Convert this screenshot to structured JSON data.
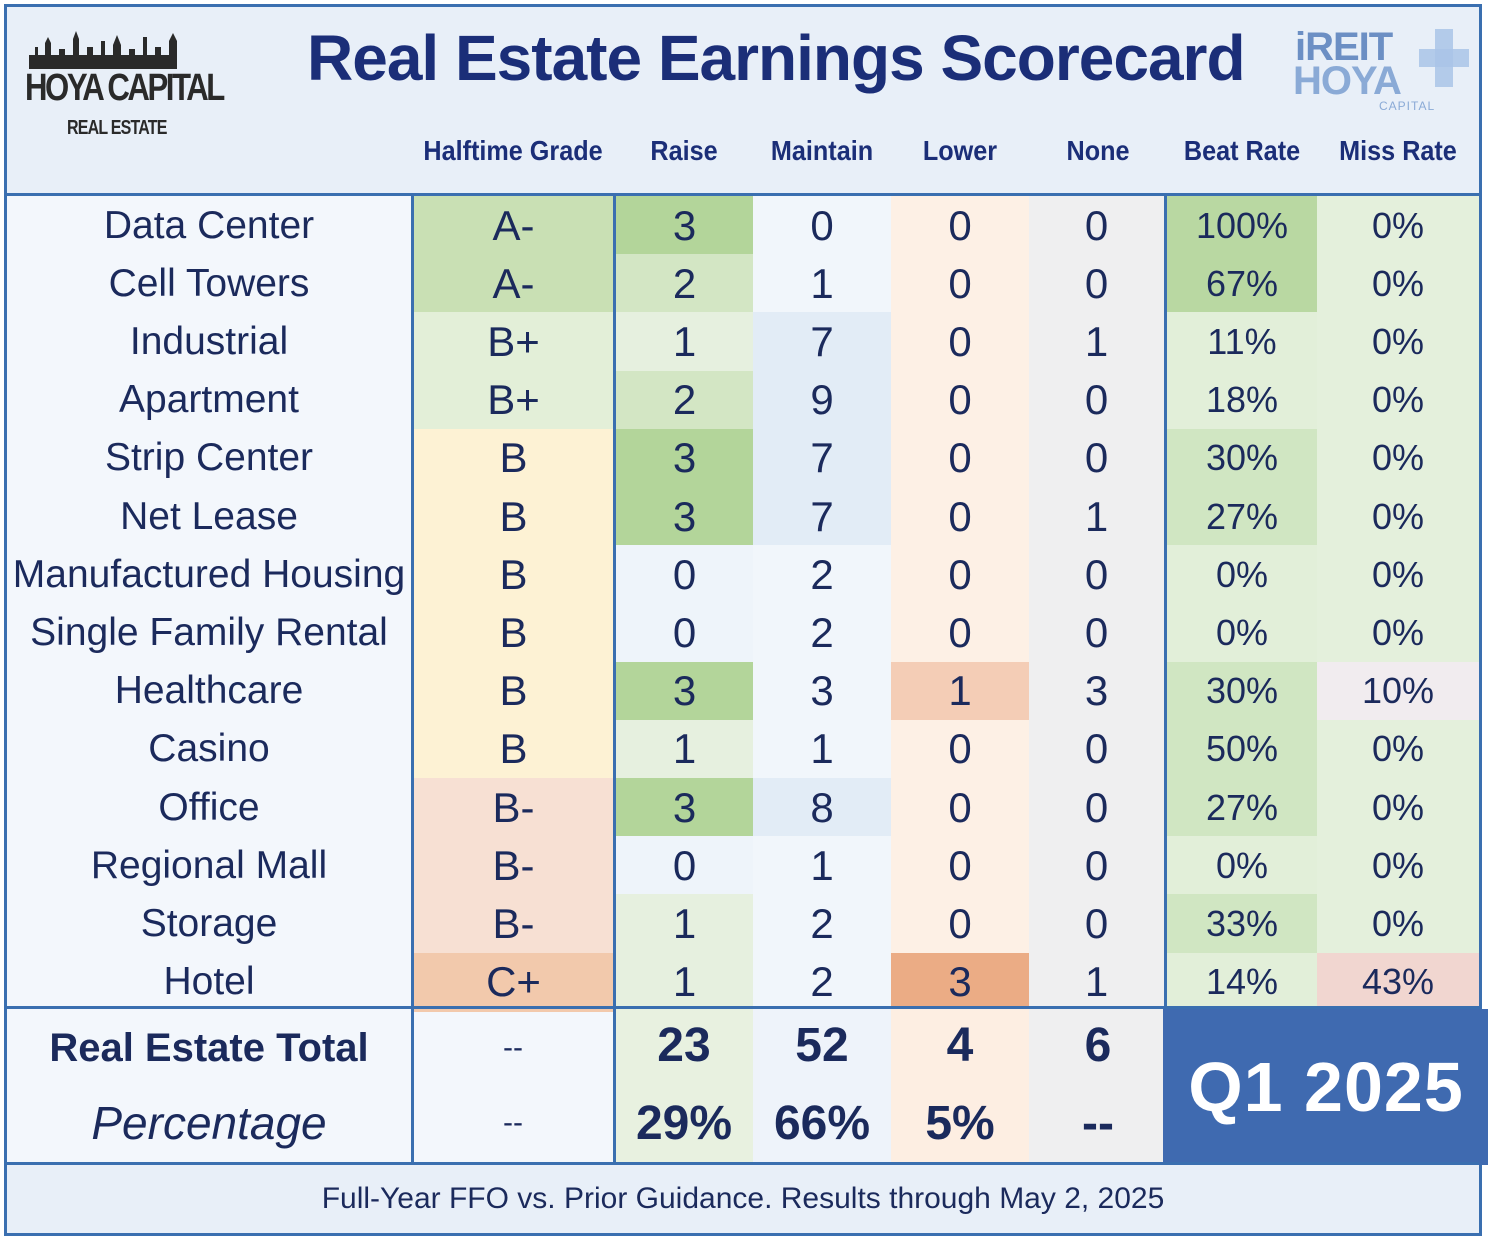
{
  "title": "Real Estate Earnings Scorecard",
  "logo_left": {
    "line1": "HOYA CAPITAL",
    "line2": "REAL ESTATE"
  },
  "logo_right": {
    "line1": "iREIT",
    "line2": "HOYA",
    "line3": "CAPITAL"
  },
  "columns": [
    "Halftime Grade",
    "Raise",
    "Maintain",
    "Lower",
    "None",
    "Beat Rate",
    "Miss Rate"
  ],
  "chart_data": {
    "type": "table",
    "title": "Real Estate Earnings Scorecard",
    "rows": [
      {
        "category": "Data Center",
        "grade": "A-",
        "raise": 3,
        "maintain": 0,
        "lower": 0,
        "none": 0,
        "beat": "100%",
        "miss": "0%"
      },
      {
        "category": "Cell Towers",
        "grade": "A-",
        "raise": 2,
        "maintain": 1,
        "lower": 0,
        "none": 0,
        "beat": "67%",
        "miss": "0%"
      },
      {
        "category": "Industrial",
        "grade": "B+",
        "raise": 1,
        "maintain": 7,
        "lower": 0,
        "none": 1,
        "beat": "11%",
        "miss": "0%"
      },
      {
        "category": "Apartment",
        "grade": "B+",
        "raise": 2,
        "maintain": 9,
        "lower": 0,
        "none": 0,
        "beat": "18%",
        "miss": "0%"
      },
      {
        "category": "Strip Center",
        "grade": "B",
        "raise": 3,
        "maintain": 7,
        "lower": 0,
        "none": 0,
        "beat": "30%",
        "miss": "0%"
      },
      {
        "category": "Net Lease",
        "grade": "B",
        "raise": 3,
        "maintain": 7,
        "lower": 0,
        "none": 1,
        "beat": "27%",
        "miss": "0%"
      },
      {
        "category": "Manufactured Housing",
        "grade": "B",
        "raise": 0,
        "maintain": 2,
        "lower": 0,
        "none": 0,
        "beat": "0%",
        "miss": "0%"
      },
      {
        "category": "Single Family Rental",
        "grade": "B",
        "raise": 0,
        "maintain": 2,
        "lower": 0,
        "none": 0,
        "beat": "0%",
        "miss": "0%"
      },
      {
        "category": "Healthcare",
        "grade": "B",
        "raise": 3,
        "maintain": 3,
        "lower": 1,
        "none": 3,
        "beat": "30%",
        "miss": "10%"
      },
      {
        "category": "Casino",
        "grade": "B",
        "raise": 1,
        "maintain": 1,
        "lower": 0,
        "none": 0,
        "beat": "50%",
        "miss": "0%"
      },
      {
        "category": "Office",
        "grade": "B-",
        "raise": 3,
        "maintain": 8,
        "lower": 0,
        "none": 0,
        "beat": "27%",
        "miss": "0%"
      },
      {
        "category": "Regional Mall",
        "grade": "B-",
        "raise": 0,
        "maintain": 1,
        "lower": 0,
        "none": 0,
        "beat": "0%",
        "miss": "0%"
      },
      {
        "category": "Storage",
        "grade": "B-",
        "raise": 1,
        "maintain": 2,
        "lower": 0,
        "none": 0,
        "beat": "33%",
        "miss": "0%"
      },
      {
        "category": "Hotel",
        "grade": "C+",
        "raise": 1,
        "maintain": 2,
        "lower": 3,
        "none": 1,
        "beat": "14%",
        "miss": "43%"
      }
    ],
    "total": {
      "label": "Real Estate Total",
      "grade": "--",
      "raise": "23",
      "maintain": "52",
      "lower": "4",
      "none": "6"
    },
    "percentage": {
      "label": "Percentage",
      "grade": "--",
      "raise": "29%",
      "maintain": "66%",
      "lower": "5%",
      "none": "--"
    }
  },
  "period": "Q1 2025",
  "footer": "Full-Year FFO vs. Prior Guidance. Results through May 2, 2025",
  "colors": {
    "grade": {
      "A-": "#c9e0b4",
      "B+": "#e3efd8",
      "B": "#fdf2d4",
      "B-": "#f7e0d3",
      "C+": "#f2c9ac"
    },
    "raise_scale": [
      "#eef4fa",
      "#e6f0df",
      "#d3e6c4",
      "#b3d59a"
    ],
    "maintain_scale": [
      "#f1f6fb",
      "#e2ecf6"
    ],
    "lower_scale": [
      "#fdf0e5",
      "#f4cdb6",
      "#ebac85"
    ],
    "none_col": "#efeff0",
    "beat_scale": [
      "#e2efd9",
      "#d0e6c2",
      "#b9d8a2"
    ],
    "miss_scale": [
      "#e4f0dc",
      "#f1ecef",
      "#f1d6d0"
    ]
  }
}
